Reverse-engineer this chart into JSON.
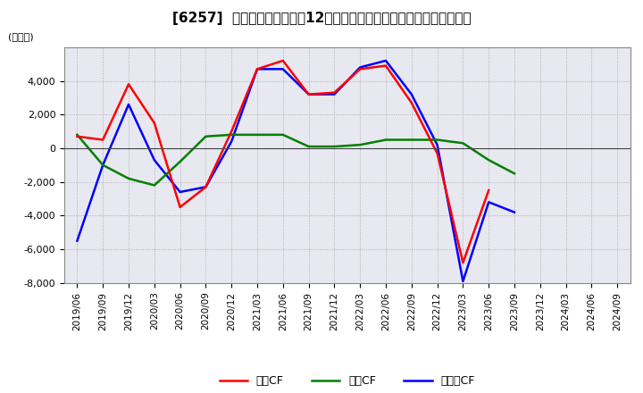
{
  "title": "[6257]  キャッシュフローの12か月移動合計の対前年同期増減額の推移",
  "ylabel": "(百万円)",
  "ylim": [
    -8000,
    6000
  ],
  "yticks": [
    -8000,
    -6000,
    -4000,
    -2000,
    0,
    2000,
    4000
  ],
  "legend": [
    "営業CF",
    "投資CF",
    "フリーCF"
  ],
  "legend_colors": [
    "#ff0000",
    "#008000",
    "#0000ff"
  ],
  "x_labels": [
    "2019/06",
    "2019/09",
    "2019/12",
    "2020/03",
    "2020/06",
    "2020/09",
    "2020/12",
    "2021/03",
    "2021/06",
    "2021/09",
    "2021/12",
    "2022/03",
    "2022/06",
    "2022/09",
    "2022/12",
    "2023/03",
    "2023/06",
    "2023/09",
    "2023/12",
    "2024/03",
    "2024/06",
    "2024/09"
  ],
  "operating_cf": [
    700,
    500,
    3800,
    1500,
    -3500,
    -2300,
    1000,
    4700,
    5200,
    3200,
    3300,
    4700,
    4900,
    2700,
    -300,
    -6800,
    -2500,
    null,
    null,
    null,
    null,
    null
  ],
  "investing_cf": [
    800,
    -1000,
    -1800,
    -2200,
    -800,
    700,
    800,
    800,
    800,
    100,
    100,
    200,
    500,
    500,
    500,
    300,
    -700,
    -1500,
    null,
    null,
    null,
    null
  ],
  "free_cf": [
    -5500,
    -1000,
    2600,
    -700,
    -2600,
    -2300,
    400,
    4700,
    4700,
    3200,
    3200,
    4800,
    5200,
    3200,
    200,
    -7900,
    -3200,
    -3800,
    null,
    null,
    null,
    null
  ],
  "background_color": "#ffffff",
  "grid_color": "#aaaaaa",
  "plot_bg_color": "#e8e8f0",
  "title_fontsize": 11,
  "axis_fontsize": 8
}
